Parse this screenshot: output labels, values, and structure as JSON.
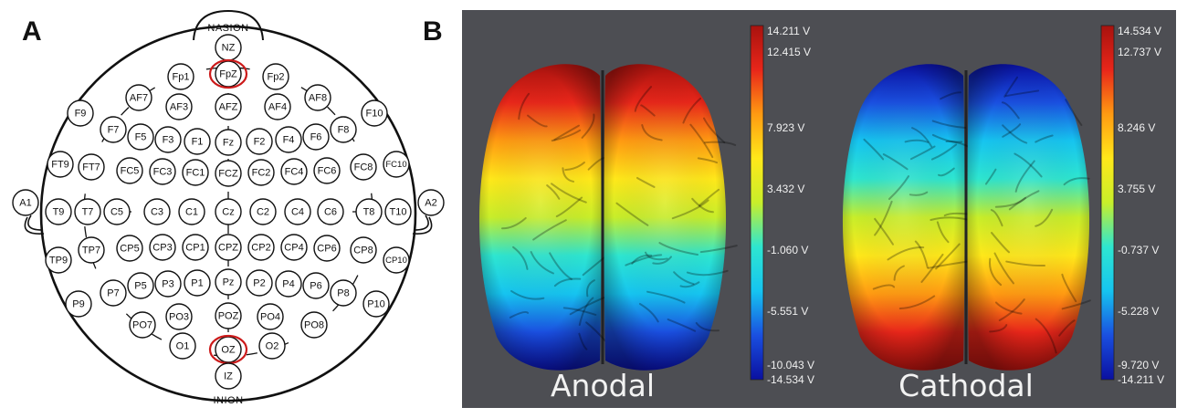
{
  "panel_a": {
    "letter": "A",
    "nasion": "NASION",
    "inion": "INION",
    "highlight_color": "#cc1a1a",
    "electrodes": [
      {
        "label": "NZ"
      },
      {
        "label": "FpZ",
        "highlight": true
      },
      {
        "label": "Fp1"
      },
      {
        "label": "Fp2"
      },
      {
        "label": "AF7"
      },
      {
        "label": "AF3"
      },
      {
        "label": "AFZ"
      },
      {
        "label": "AF4"
      },
      {
        "label": "AF8"
      },
      {
        "label": "F9"
      },
      {
        "label": "F7"
      },
      {
        "label": "F5"
      },
      {
        "label": "F3"
      },
      {
        "label": "F1"
      },
      {
        "label": "Fz"
      },
      {
        "label": "F2"
      },
      {
        "label": "F4"
      },
      {
        "label": "F6"
      },
      {
        "label": "F8"
      },
      {
        "label": "F10"
      },
      {
        "label": "FT9"
      },
      {
        "label": "FT7"
      },
      {
        "label": "FC5"
      },
      {
        "label": "FC3"
      },
      {
        "label": "FC1"
      },
      {
        "label": "FCZ"
      },
      {
        "label": "FC2"
      },
      {
        "label": "FC4"
      },
      {
        "label": "FC6"
      },
      {
        "label": "FC8"
      },
      {
        "label": "FC10"
      },
      {
        "label": "A1"
      },
      {
        "label": "T9"
      },
      {
        "label": "T7"
      },
      {
        "label": "C5"
      },
      {
        "label": "C3"
      },
      {
        "label": "C1"
      },
      {
        "label": "Cz"
      },
      {
        "label": "C2"
      },
      {
        "label": "C4"
      },
      {
        "label": "C6"
      },
      {
        "label": "T8"
      },
      {
        "label": "T10"
      },
      {
        "label": "A2"
      },
      {
        "label": "TP9"
      },
      {
        "label": "TP7"
      },
      {
        "label": "CP5"
      },
      {
        "label": "CP3"
      },
      {
        "label": "CP1"
      },
      {
        "label": "CPZ"
      },
      {
        "label": "CP2"
      },
      {
        "label": "CP4"
      },
      {
        "label": "CP6"
      },
      {
        "label": "CP8"
      },
      {
        "label": "CP10"
      },
      {
        "label": "P9"
      },
      {
        "label": "P7"
      },
      {
        "label": "P5"
      },
      {
        "label": "P3"
      },
      {
        "label": "P1"
      },
      {
        "label": "Pz"
      },
      {
        "label": "P2"
      },
      {
        "label": "P4"
      },
      {
        "label": "P6"
      },
      {
        "label": "P8"
      },
      {
        "label": "P10"
      },
      {
        "label": "PO7"
      },
      {
        "label": "PO3"
      },
      {
        "label": "POZ"
      },
      {
        "label": "PO4"
      },
      {
        "label": "PO8"
      },
      {
        "label": "O1"
      },
      {
        "label": "OZ",
        "highlight": true
      },
      {
        "label": "O2"
      },
      {
        "label": "IZ"
      }
    ]
  },
  "panel_b": {
    "letter": "B",
    "background": "#4d4e53",
    "brains": [
      {
        "title": "Anodal",
        "polarity": "front-positive",
        "colorbar_ticks": [
          "14.211 V",
          "12.415 V",
          "7.923 V",
          "3.432 V",
          "-1.060 V",
          "-5.551 V",
          "-10.043 V",
          "-14.534 V"
        ]
      },
      {
        "title": "Cathodal",
        "polarity": "front-negative",
        "colorbar_ticks": [
          "14.534 V",
          "12.737 V",
          "8.246 V",
          "3.755 V",
          "-0.737 V",
          "-5.228 V",
          "-9.720 V",
          "-14.211 V"
        ]
      }
    ],
    "colormap": [
      "#0a10a0",
      "#1a4fe0",
      "#16c4f0",
      "#2ee6d0",
      "#c8ee2a",
      "#ffe81a",
      "#ff9a12",
      "#e8261a",
      "#a8120e"
    ]
  }
}
